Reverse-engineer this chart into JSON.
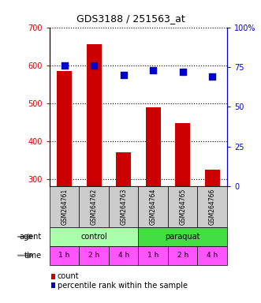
{
  "title": "GDS3188 / 251563_at",
  "categories": [
    "GSM264761",
    "GSM264762",
    "GSM264763",
    "GSM264764",
    "GSM264765",
    "GSM264766"
  ],
  "bar_values": [
    585,
    655,
    370,
    488,
    447,
    325
  ],
  "percentile_values": [
    76,
    76,
    70,
    73,
    72,
    69
  ],
  "bar_color": "#cc0000",
  "point_color": "#0000cc",
  "ylim_left": [
    280,
    700
  ],
  "ylim_right": [
    0,
    100
  ],
  "yticks_left": [
    300,
    400,
    500,
    600,
    700
  ],
  "yticks_right": [
    0,
    25,
    50,
    75,
    100
  ],
  "ytick_labels_right": [
    "0",
    "25",
    "50",
    "75",
    "100%"
  ],
  "agent_labels": [
    "control",
    "paraquat"
  ],
  "agent_colors": [
    "#aaffaa",
    "#44dd44"
  ],
  "time_labels": [
    "1 h",
    "2 h",
    "4 h",
    "1 h",
    "2 h",
    "4 h"
  ],
  "time_color": "#ff55ff",
  "agent_row_label": "agent",
  "time_row_label": "time",
  "legend_count_color": "#cc0000",
  "legend_pct_color": "#0000cc",
  "background_color": "#ffffff",
  "label_row_bg": "#cccccc"
}
